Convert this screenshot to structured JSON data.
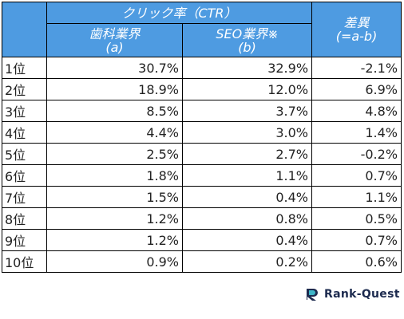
{
  "table": {
    "header": {
      "ctr": "クリック率（CTR）",
      "a": [
        "歯科業界",
        "(a)"
      ],
      "b": [
        "SEO業界※",
        "(b)"
      ],
      "diff": [
        "差異",
        "(=a-b)"
      ]
    },
    "rows": [
      [
        "1位",
        "30.7%",
        "32.9%",
        "-2.1%"
      ],
      [
        "2位",
        "18.9%",
        "12.0%",
        "6.9%"
      ],
      [
        "3位",
        "8.5%",
        "3.7%",
        "4.8%"
      ],
      [
        "4位",
        "4.4%",
        "3.0%",
        "1.4%"
      ],
      [
        "5位",
        "2.5%",
        "2.7%",
        "-0.2%"
      ],
      [
        "6位",
        "1.8%",
        "1.1%",
        "0.7%"
      ],
      [
        "7位",
        "1.5%",
        "0.4%",
        "1.1%"
      ],
      [
        "8位",
        "1.2%",
        "0.8%",
        "0.5%"
      ],
      [
        "9位",
        "1.2%",
        "0.4%",
        "0.7%"
      ],
      [
        "10位",
        "0.9%",
        "0.2%",
        "0.6%"
      ]
    ]
  },
  "logo": "Rank-Quest"
}
